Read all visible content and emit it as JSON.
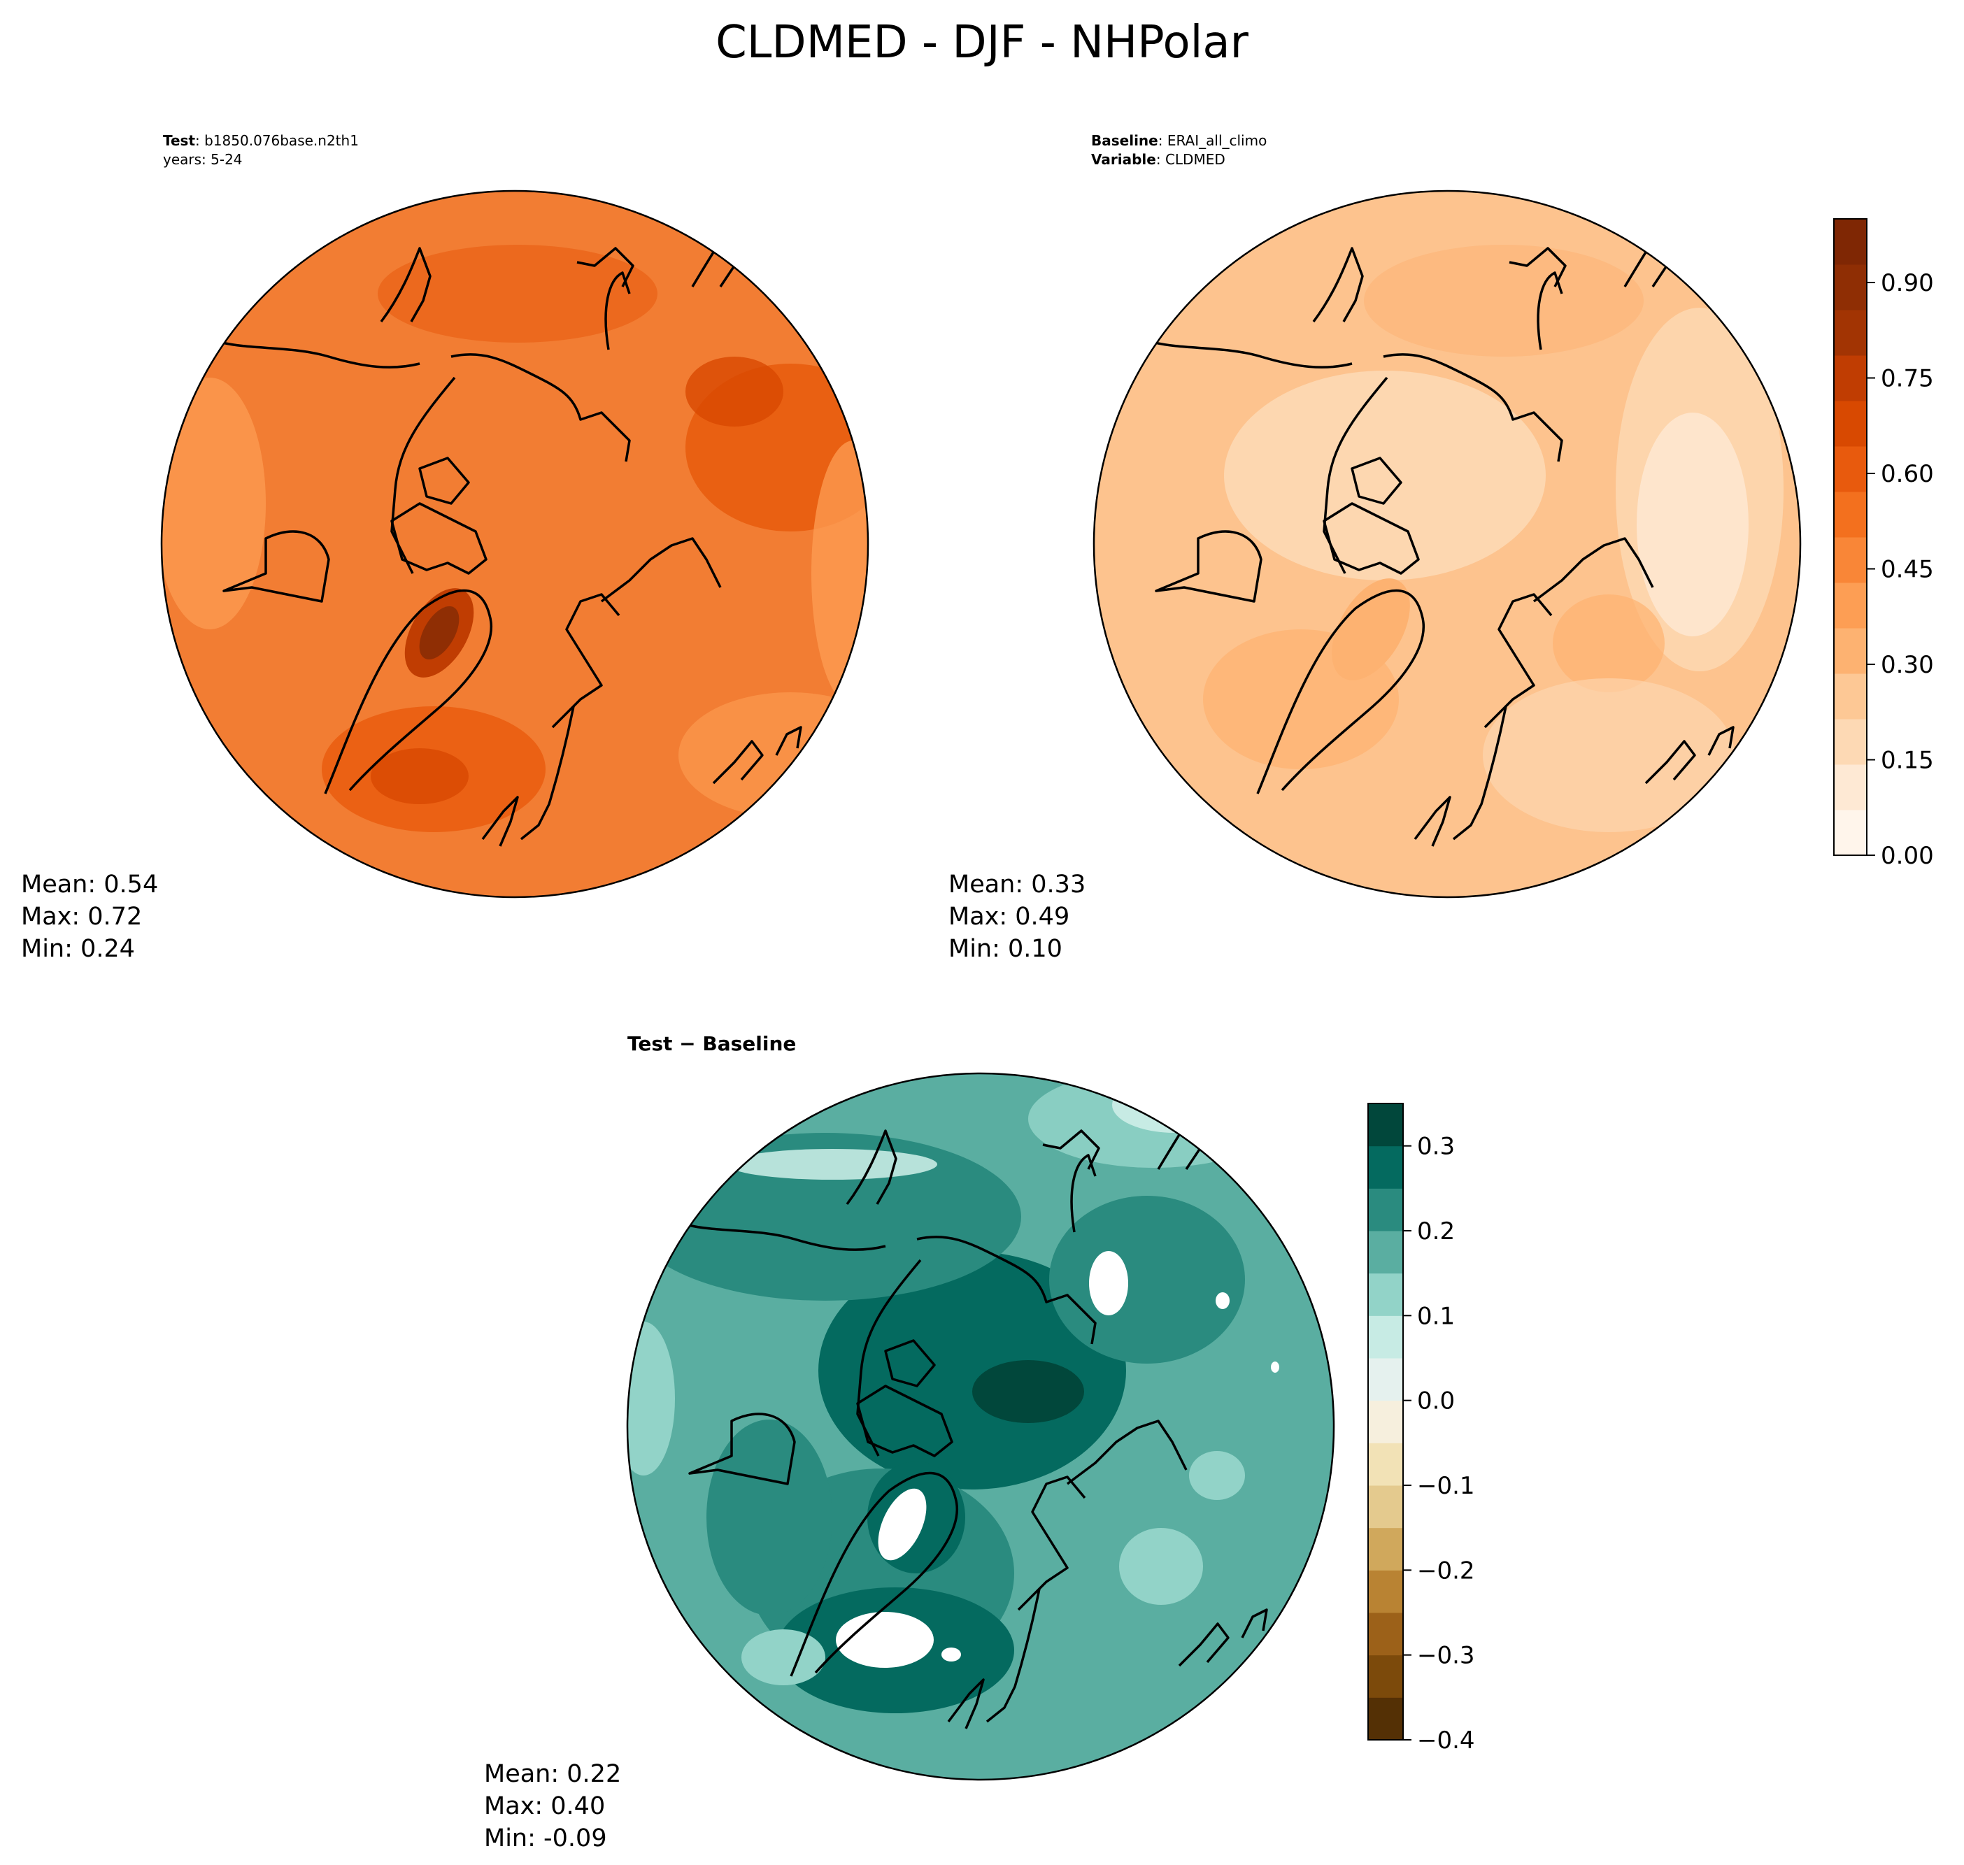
{
  "figure": {
    "title": "CLDMED - DJF - NHPolar"
  },
  "panels": [
    {
      "id": "test",
      "header_lines": [
        {
          "bold": "Test",
          "rest": ": b1850.076base.n2th1"
        },
        {
          "bold": "",
          "rest": "years: 5-24"
        }
      ],
      "stats": {
        "mean": "Mean:  0.54",
        "max": "Max:  0.72",
        "min": "Min:  0.24"
      }
    },
    {
      "id": "baseline",
      "header_lines": [
        {
          "bold": "Baseline",
          "rest": ": ERAI_all_climo"
        },
        {
          "bold": "Variable",
          "rest": ": CLDMED"
        }
      ],
      "stats": {
        "mean": "Mean:  0.33",
        "max": "Max:  0.49",
        "min": "Min:  0.10"
      }
    },
    {
      "id": "diff",
      "title": "Test − Baseline",
      "stats": {
        "mean": "Mean:  0.22",
        "max": "Max:  0.40",
        "min": "Min: -0.09"
      }
    }
  ],
  "colorbars": {
    "top": {
      "ticks": [
        "0.00",
        "0.15",
        "0.30",
        "0.45",
        "0.60",
        "0.75",
        "0.90"
      ],
      "tick_values": [
        0.0,
        0.15,
        0.3,
        0.45,
        0.6,
        0.75,
        0.9
      ],
      "range": [
        0.0,
        1.0
      ],
      "colors": [
        "#fff5eb",
        "#fee9d4",
        "#fdd9b4",
        "#fdc895",
        "#fdb271",
        "#fd9e54",
        "#f98637",
        "#f3701e",
        "#e85a0d",
        "#d84901",
        "#c03d02",
        "#a23403",
        "#8f2e04",
        "#7f2704"
      ]
    },
    "bottom": {
      "ticks": [
        "−0.4",
        "−0.3",
        "−0.2",
        "−0.1",
        "0.0",
        "0.1",
        "0.2",
        "0.3"
      ],
      "tick_values": [
        -0.4,
        -0.3,
        -0.2,
        -0.1,
        0.0,
        0.1,
        0.2,
        0.3
      ],
      "range": [
        -0.4,
        0.35
      ],
      "colors": [
        "#543005",
        "#7c4a0b",
        "#9c6119",
        "#b98333",
        "#d0a85c",
        "#e4ca8e",
        "#f2e2b6",
        "#f6efdd",
        "#e5f1ee",
        "#c7ebe4",
        "#92d3c8",
        "#5aaea1",
        "#2a8b7f",
        "#046a5f",
        "#01473b"
      ]
    }
  },
  "map_colors": {
    "test_base": "#f27d33",
    "base_base": "#fdc38e",
    "diff_base": "#5aaea1"
  }
}
